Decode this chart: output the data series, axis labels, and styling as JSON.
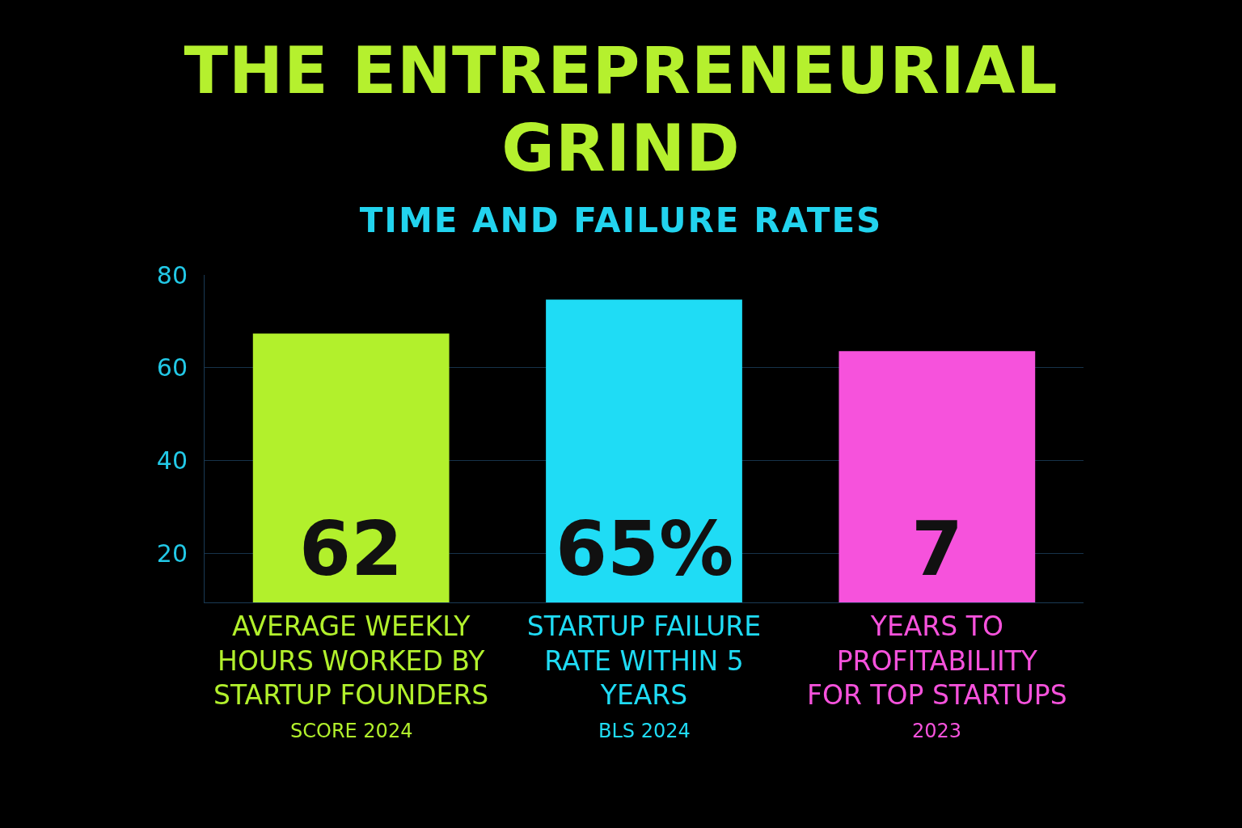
{
  "chart_data": {
    "type": "bar",
    "title": "THE ENTREPRENEURIAL GRIND",
    "subtitle": "TIME AND FAILURE RATES",
    "categories": [
      "AVERAGE WEEKLY HOURS WORKED BY STARTUP FOUNDERS",
      "STARTUP FAILURE RATE WITHIN 5 YEARS",
      "YEARS TO PROFITABILIITY FOR TOP STARTUPS"
    ],
    "values": [
      67.4,
      74.7,
      63.6
    ],
    "colors": [
      "#b2f02c",
      "#1fdcf5",
      "#f652dc"
    ],
    "annotations": [
      "62",
      "65%",
      "7",
      "SCORE 2024",
      "BLS 2024",
      "2023"
    ],
    "ylim": [
      9.5,
      80
    ],
    "yticks": [
      20,
      40,
      60,
      80
    ],
    "grid": "y"
  }
}
